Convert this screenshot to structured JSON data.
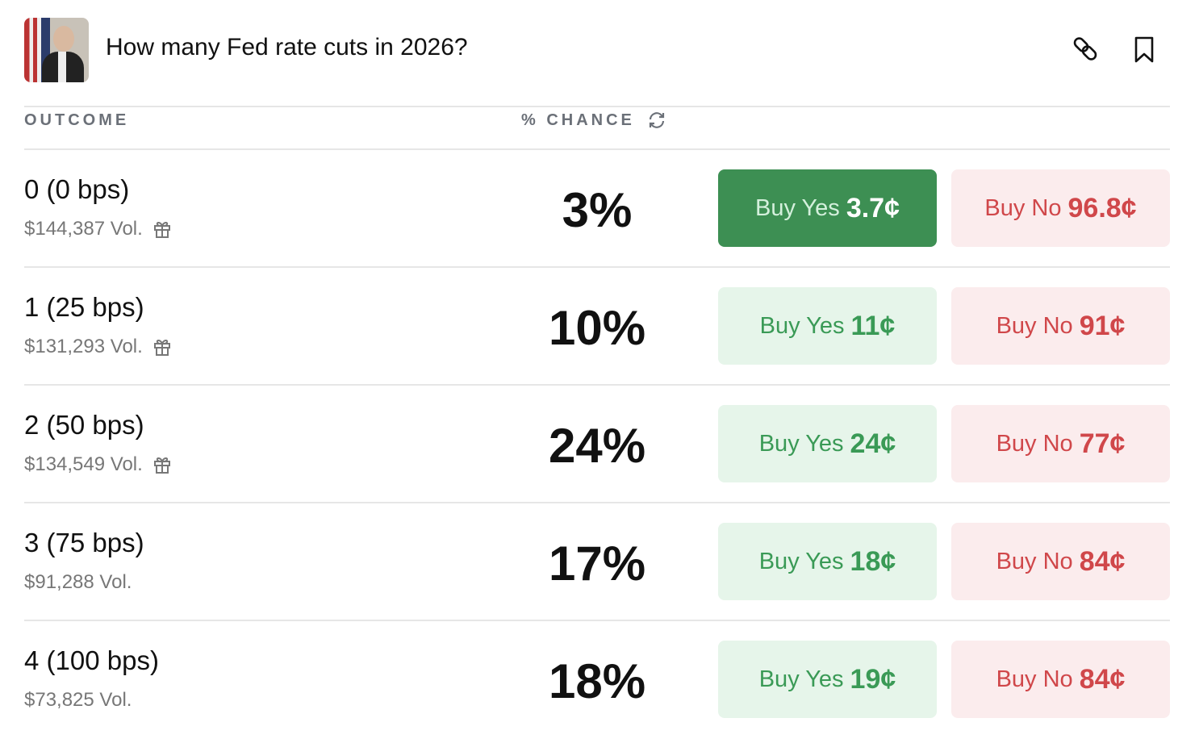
{
  "header": {
    "title": "How many Fed rate cuts in 2026?",
    "icons": [
      "link-icon",
      "bookmark-icon"
    ]
  },
  "columns": {
    "outcome": "OUTCOME",
    "chance": "% CHANCE"
  },
  "rows": [
    {
      "outcome": "0 (0 bps)",
      "volume": "$144,387 Vol.",
      "gift": true,
      "chance": "3%",
      "yes_label": "Buy Yes",
      "yes_price": "3.7¢",
      "no_label": "Buy No",
      "no_price": "96.8¢",
      "selected": true
    },
    {
      "outcome": "1 (25 bps)",
      "volume": "$131,293 Vol.",
      "gift": true,
      "chance": "10%",
      "yes_label": "Buy Yes",
      "yes_price": "11¢",
      "no_label": "Buy No",
      "no_price": "91¢"
    },
    {
      "outcome": "2 (50 bps)",
      "volume": "$134,549 Vol.",
      "gift": true,
      "chance": "24%",
      "yes_label": "Buy Yes",
      "yes_price": "24¢",
      "no_label": "Buy No",
      "no_price": "77¢"
    },
    {
      "outcome": "3 (75 bps)",
      "volume": "$91,288 Vol.",
      "gift": false,
      "chance": "17%",
      "yes_label": "Buy Yes",
      "yes_price": "18¢",
      "no_label": "Buy No",
      "no_price": "84¢"
    },
    {
      "outcome": "4 (100 bps)",
      "volume": "$73,825 Vol.",
      "gift": false,
      "chance": "18%",
      "yes_label": "Buy Yes",
      "yes_price": "19¢",
      "no_label": "Buy No",
      "no_price": "84¢"
    }
  ],
  "colors": {
    "yes_active": "#3d8f53",
    "yes_bg": "#e6f5ea",
    "yes_text": "#3a9a56",
    "no_bg": "#fbeced",
    "no_text": "#d0474a"
  }
}
